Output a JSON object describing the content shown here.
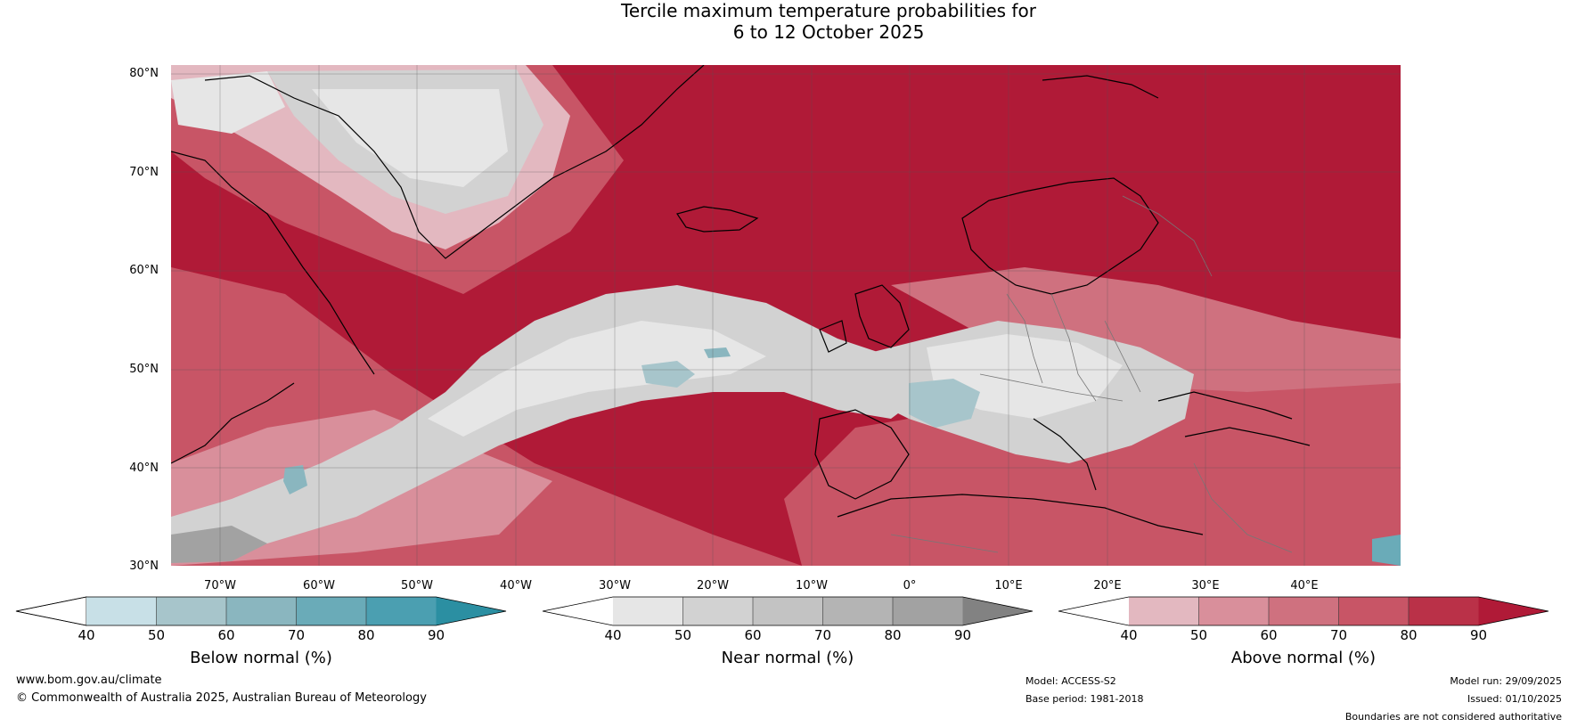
{
  "title_line1": "Tercile maximum temperature probabilities for",
  "title_line2": "6 to 12 October 2025",
  "lat_labels": [
    "80°N",
    "70°N",
    "60°N",
    "50°N",
    "40°N",
    "30°N"
  ],
  "lon_labels": [
    "70°W",
    "60°W",
    "50°W",
    "40°W",
    "30°W",
    "20°W",
    "10°W",
    "0°",
    "10°E",
    "20°E",
    "30°E",
    "40°E"
  ],
  "colorbars": [
    {
      "title": "Below normal (%)",
      "ticks": [
        "40",
        "50",
        "60",
        "70",
        "80",
        "90"
      ],
      "colors": [
        "#ffffff",
        "#c8e0e7",
        "#a7c5cb",
        "#8ab6bf",
        "#6aabb8",
        "#4b9fb1",
        "#2b8fa2"
      ]
    },
    {
      "title": "Near normal (%)",
      "ticks": [
        "40",
        "50",
        "60",
        "70",
        "80",
        "90"
      ],
      "colors": [
        "#ffffff",
        "#e6e6e6",
        "#d2d2d2",
        "#c3c3c3",
        "#b4b4b4",
        "#a2a2a2",
        "#828282"
      ]
    },
    {
      "title": "Above normal (%)",
      "ticks": [
        "40",
        "50",
        "60",
        "70",
        "80",
        "90"
      ],
      "colors": [
        "#ffffff",
        "#e3b8c0",
        "#d98f9b",
        "#cf717f",
        "#c85566",
        "#ba3148",
        "#b01a37"
      ]
    }
  ],
  "footer": {
    "website": "www.bom.gov.au/climate",
    "copyright": "© Commonwealth of Australia 2025, Australian Bureau of Meteorology",
    "model": "Model: ACCESS-S2",
    "base_period": "Base period: 1981-2018",
    "model_run": "Model run: 29/09/2025",
    "issued": "Issued: 01/10/2025",
    "disclaimer": "Boundaries are not considered authoritative"
  }
}
